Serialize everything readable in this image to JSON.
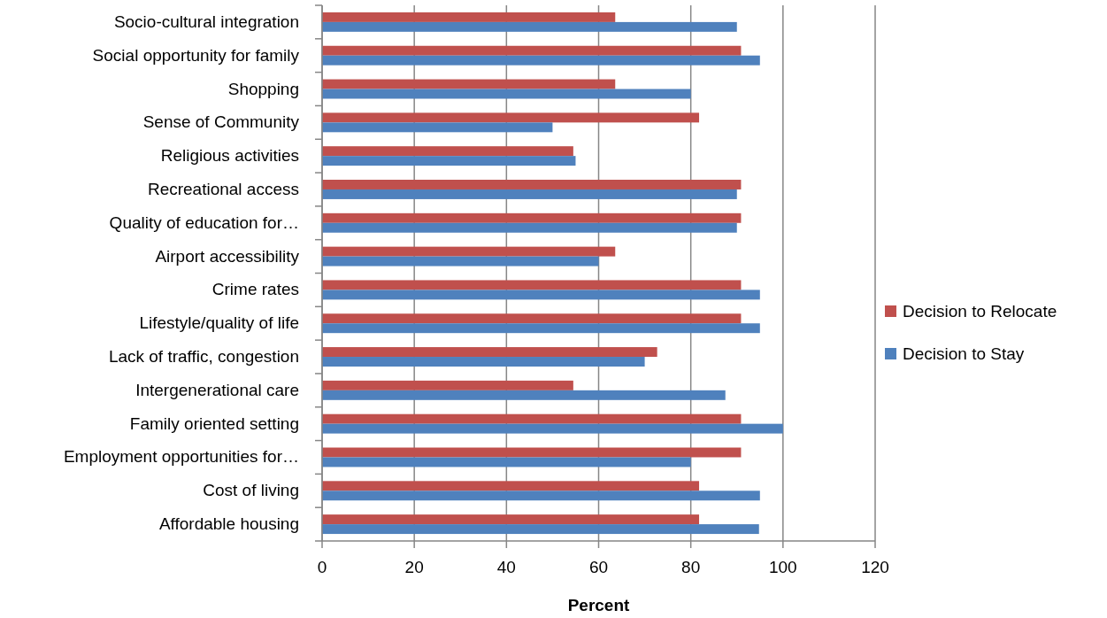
{
  "chart_data": {
    "type": "bar",
    "orientation": "horizontal",
    "xlabel": "Percent",
    "categories": [
      "Socio-cultural integration",
      "Social opportunity for family",
      "Shopping",
      "Sense of Community",
      "Religious activities",
      "Recreational access",
      "Quality of education for…",
      "Airport accessibility",
      "Crime rates",
      "Lifestyle/quality of life",
      "Lack of traffic, congestion",
      "Intergenerational care",
      "Family oriented setting",
      "Employment opportunities for…",
      "Cost of living",
      "Affordable housing"
    ],
    "series": [
      {
        "name": "Decision to Relocate",
        "color": "#c0504d",
        "values": [
          63.6,
          90.9,
          63.6,
          81.8,
          54.5,
          90.9,
          90.9,
          63.6,
          90.9,
          90.9,
          72.7,
          54.5,
          90.9,
          90.9,
          81.8,
          81.8
        ]
      },
      {
        "name": "Decision to Stay",
        "color": "#4f81bd",
        "values": [
          90,
          95,
          80,
          50,
          55,
          90,
          90,
          60,
          95,
          95,
          70,
          87.5,
          100,
          80,
          95,
          94.8
        ]
      }
    ],
    "xlim": [
      0,
      120
    ],
    "xticks": [
      0,
      20,
      40,
      60,
      80,
      100,
      120
    ],
    "grid": "x",
    "legend": "right"
  }
}
